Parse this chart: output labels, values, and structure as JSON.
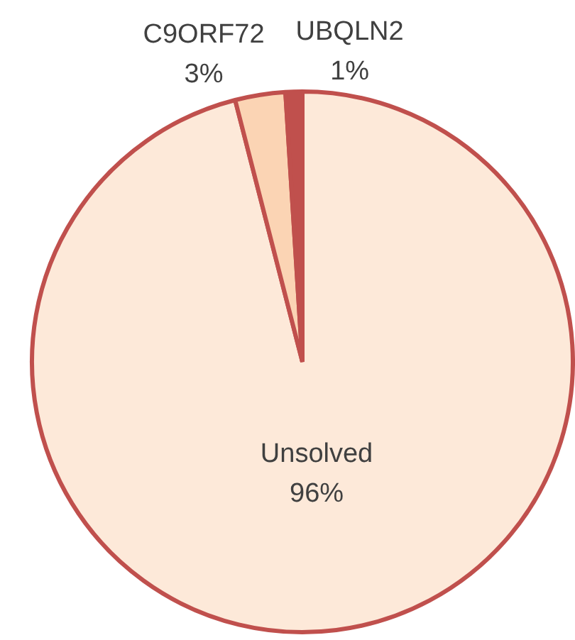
{
  "chart_data": {
    "type": "pie",
    "categories": [
      "Unsolved",
      "C9ORF72",
      "UBQLN2"
    ],
    "values": [
      96,
      3,
      1
    ],
    "colors": [
      "#fde9d9",
      "#fbd4b4",
      "#c0504d"
    ],
    "value_labels": [
      "96%",
      "3%",
      "1%"
    ],
    "legend": false
  }
}
